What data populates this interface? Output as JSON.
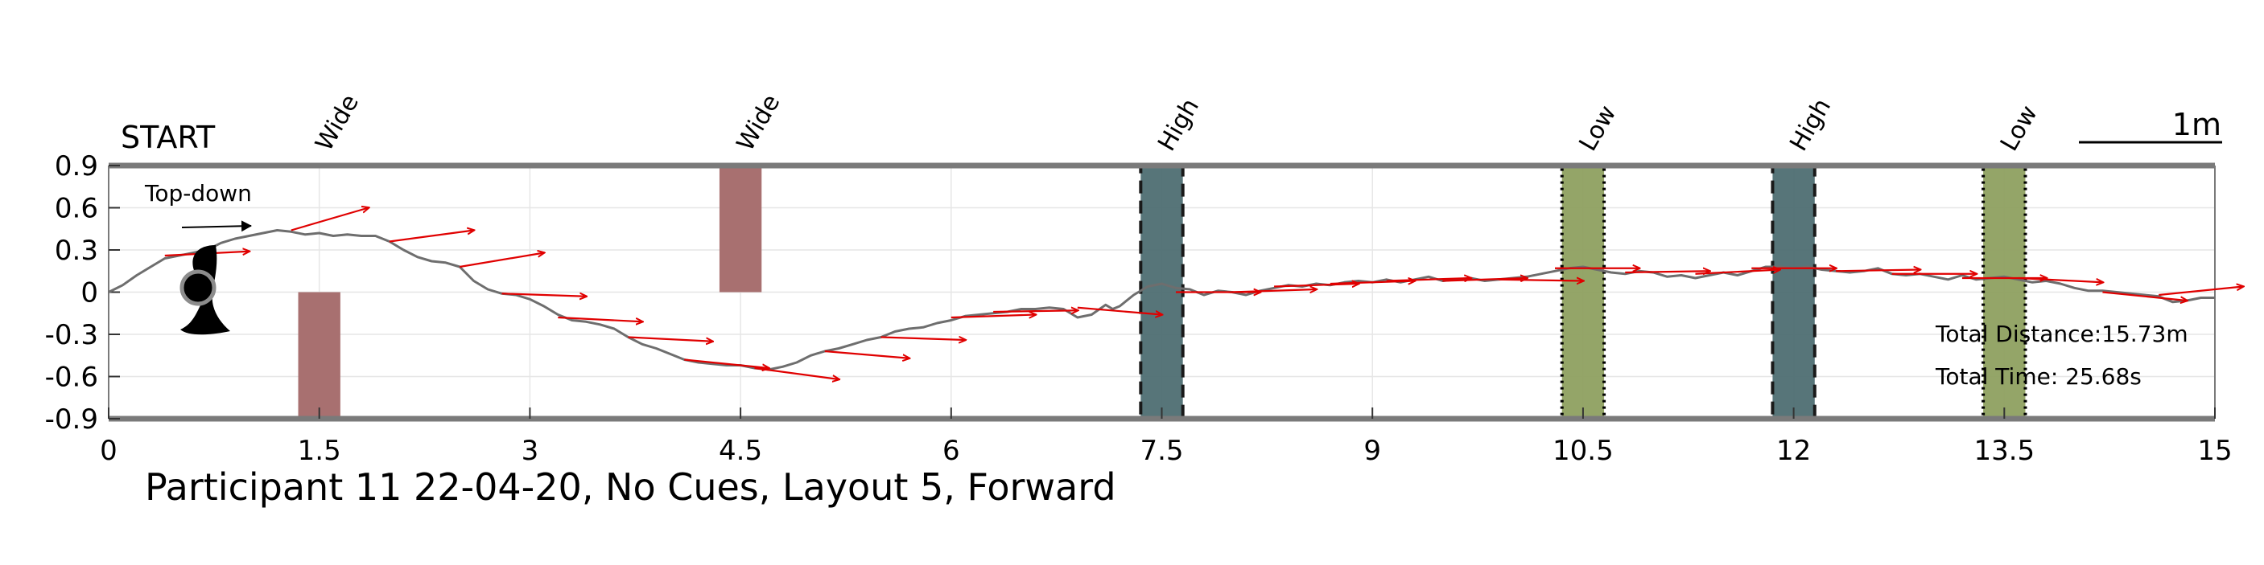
{
  "chart_data": {
    "type": "line",
    "title": "Participant 11 22-04-20, No Cues, Layout 5, Forward",
    "start_label": "START",
    "scale_label": "1m",
    "inset_label": "Top-down",
    "xlim": [
      0,
      15
    ],
    "ylim": [
      -0.9,
      0.9
    ],
    "x_ticks": [
      "0",
      "1.5",
      "3",
      "4.5",
      "6",
      "7.5",
      "9",
      "10.5",
      "12",
      "13.5",
      "15"
    ],
    "x_tick_values": [
      0,
      1.5,
      3,
      4.5,
      6,
      7.5,
      9,
      10.5,
      12,
      13.5,
      15
    ],
    "y_ticks": [
      "0.9",
      "0.6",
      "0.3",
      "0",
      "-0.3",
      "-0.6",
      "-0.9"
    ],
    "y_tick_values": [
      0.9,
      0.6,
      0.3,
      0,
      -0.3,
      -0.6,
      -0.9
    ],
    "grid": true,
    "annotations": {
      "total_distance": "Total Distance:15.73m",
      "total_time": "Total Time: 25.68s"
    },
    "obstacles": [
      {
        "label": "Wide",
        "type": "wide",
        "x0": 1.35,
        "x1": 1.65,
        "y0": -0.9,
        "y1": 0,
        "color": "#a87070"
      },
      {
        "label": "Wide",
        "type": "wide",
        "x0": 4.35,
        "x1": 4.65,
        "y0": 0,
        "y1": 0.9,
        "color": "#a87070"
      },
      {
        "label": "High",
        "type": "high",
        "x0": 7.35,
        "x1": 7.65,
        "y0": -0.9,
        "y1": 0.9,
        "color": "#4e6e72"
      },
      {
        "label": "Low",
        "type": "low",
        "x0": 10.35,
        "x1": 10.65,
        "y0": -0.9,
        "y1": 0.9,
        "color": "#8ea060"
      },
      {
        "label": "High",
        "type": "high",
        "x0": 11.85,
        "x1": 12.15,
        "y0": -0.9,
        "y1": 0.9,
        "color": "#4e6e72"
      },
      {
        "label": "Low",
        "type": "low",
        "x0": 13.35,
        "x1": 13.65,
        "y0": -0.9,
        "y1": 0.9,
        "color": "#8ea060"
      }
    ],
    "path": [
      [
        0.0,
        0.0
      ],
      [
        0.1,
        0.05
      ],
      [
        0.2,
        0.12
      ],
      [
        0.3,
        0.18
      ],
      [
        0.4,
        0.24
      ],
      [
        0.55,
        0.27
      ],
      [
        0.7,
        0.3
      ],
      [
        0.8,
        0.35
      ],
      [
        0.9,
        0.38
      ],
      [
        1.0,
        0.4
      ],
      [
        1.1,
        0.42
      ],
      [
        1.2,
        0.44
      ],
      [
        1.3,
        0.43
      ],
      [
        1.4,
        0.41
      ],
      [
        1.5,
        0.42
      ],
      [
        1.6,
        0.4
      ],
      [
        1.7,
        0.41
      ],
      [
        1.8,
        0.4
      ],
      [
        1.9,
        0.4
      ],
      [
        2.0,
        0.36
      ],
      [
        2.1,
        0.3
      ],
      [
        2.2,
        0.25
      ],
      [
        2.3,
        0.22
      ],
      [
        2.4,
        0.21
      ],
      [
        2.5,
        0.18
      ],
      [
        2.6,
        0.08
      ],
      [
        2.7,
        0.02
      ],
      [
        2.8,
        -0.01
      ],
      [
        2.9,
        -0.02
      ],
      [
        3.0,
        -0.05
      ],
      [
        3.1,
        -0.1
      ],
      [
        3.2,
        -0.16
      ],
      [
        3.3,
        -0.2
      ],
      [
        3.4,
        -0.21
      ],
      [
        3.5,
        -0.23
      ],
      [
        3.6,
        -0.26
      ],
      [
        3.7,
        -0.32
      ],
      [
        3.8,
        -0.37
      ],
      [
        3.9,
        -0.4
      ],
      [
        4.0,
        -0.44
      ],
      [
        4.1,
        -0.48
      ],
      [
        4.2,
        -0.5
      ],
      [
        4.3,
        -0.51
      ],
      [
        4.4,
        -0.52
      ],
      [
        4.5,
        -0.52
      ],
      [
        4.6,
        -0.54
      ],
      [
        4.7,
        -0.55
      ],
      [
        4.8,
        -0.53
      ],
      [
        4.9,
        -0.5
      ],
      [
        5.0,
        -0.45
      ],
      [
        5.1,
        -0.42
      ],
      [
        5.2,
        -0.4
      ],
      [
        5.3,
        -0.37
      ],
      [
        5.4,
        -0.34
      ],
      [
        5.5,
        -0.32
      ],
      [
        5.6,
        -0.28
      ],
      [
        5.7,
        -0.26
      ],
      [
        5.8,
        -0.25
      ],
      [
        5.9,
        -0.22
      ],
      [
        6.0,
        -0.2
      ],
      [
        6.1,
        -0.17
      ],
      [
        6.2,
        -0.16
      ],
      [
        6.3,
        -0.15
      ],
      [
        6.4,
        -0.14
      ],
      [
        6.5,
        -0.12
      ],
      [
        6.6,
        -0.12
      ],
      [
        6.7,
        -0.11
      ],
      [
        6.8,
        -0.12
      ],
      [
        6.9,
        -0.18
      ],
      [
        7.0,
        -0.16
      ],
      [
        7.1,
        -0.09
      ],
      [
        7.15,
        -0.12
      ],
      [
        7.2,
        -0.1
      ],
      [
        7.3,
        -0.02
      ],
      [
        7.4,
        0.04
      ],
      [
        7.5,
        0.06
      ],
      [
        7.6,
        0.03
      ],
      [
        7.7,
        0.02
      ],
      [
        7.8,
        -0.02
      ],
      [
        7.9,
        0.01
      ],
      [
        8.0,
        0.0
      ],
      [
        8.1,
        -0.02
      ],
      [
        8.2,
        0.01
      ],
      [
        8.3,
        0.03
      ],
      [
        8.4,
        0.05
      ],
      [
        8.5,
        0.04
      ],
      [
        8.6,
        0.06
      ],
      [
        8.7,
        0.05
      ],
      [
        8.8,
        0.07
      ],
      [
        8.9,
        0.08
      ],
      [
        9.0,
        0.07
      ],
      [
        9.1,
        0.09
      ],
      [
        9.2,
        0.07
      ],
      [
        9.3,
        0.09
      ],
      [
        9.4,
        0.11
      ],
      [
        9.5,
        0.08
      ],
      [
        9.6,
        0.09
      ],
      [
        9.7,
        0.1
      ],
      [
        9.8,
        0.08
      ],
      [
        9.9,
        0.09
      ],
      [
        10.0,
        0.1
      ],
      [
        10.1,
        0.11
      ],
      [
        10.2,
        0.13
      ],
      [
        10.3,
        0.15
      ],
      [
        10.4,
        0.17
      ],
      [
        10.5,
        0.18
      ],
      [
        10.6,
        0.16
      ],
      [
        10.7,
        0.14
      ],
      [
        10.8,
        0.13
      ],
      [
        10.9,
        0.15
      ],
      [
        11.0,
        0.14
      ],
      [
        11.1,
        0.11
      ],
      [
        11.2,
        0.12
      ],
      [
        11.3,
        0.1
      ],
      [
        11.4,
        0.12
      ],
      [
        11.5,
        0.14
      ],
      [
        11.6,
        0.12
      ],
      [
        11.7,
        0.15
      ],
      [
        11.8,
        0.18
      ],
      [
        11.9,
        0.18
      ],
      [
        12.0,
        0.17
      ],
      [
        12.1,
        0.18
      ],
      [
        12.2,
        0.16
      ],
      [
        12.3,
        0.15
      ],
      [
        12.4,
        0.14
      ],
      [
        12.5,
        0.15
      ],
      [
        12.6,
        0.17
      ],
      [
        12.7,
        0.13
      ],
      [
        12.8,
        0.12
      ],
      [
        12.9,
        0.13
      ],
      [
        13.0,
        0.11
      ],
      [
        13.1,
        0.09
      ],
      [
        13.2,
        0.12
      ],
      [
        13.3,
        0.09
      ],
      [
        13.4,
        0.1
      ],
      [
        13.5,
        0.11
      ],
      [
        13.6,
        0.09
      ],
      [
        13.7,
        0.07
      ],
      [
        13.8,
        0.08
      ],
      [
        13.9,
        0.06
      ],
      [
        14.0,
        0.03
      ],
      [
        14.1,
        0.01
      ],
      [
        14.2,
        0.01
      ],
      [
        14.3,
        0.0
      ],
      [
        14.4,
        -0.01
      ],
      [
        14.5,
        -0.02
      ],
      [
        14.6,
        -0.03
      ],
      [
        14.7,
        -0.07
      ],
      [
        14.8,
        -0.06
      ],
      [
        14.9,
        -0.04
      ],
      [
        15.0,
        -0.04
      ]
    ],
    "heading_arrows": [
      [
        0.4,
        0.26,
        0.6,
        0.03
      ],
      [
        1.3,
        0.44,
        0.55,
        0.16
      ],
      [
        2.0,
        0.36,
        0.6,
        0.08
      ],
      [
        2.5,
        0.18,
        0.6,
        0.1
      ],
      [
        2.8,
        -0.01,
        0.6,
        -0.02
      ],
      [
        3.2,
        -0.18,
        0.6,
        -0.03
      ],
      [
        3.7,
        -0.32,
        0.6,
        -0.03
      ],
      [
        4.1,
        -0.48,
        0.6,
        -0.06
      ],
      [
        4.6,
        -0.54,
        0.6,
        -0.08
      ],
      [
        5.1,
        -0.42,
        0.6,
        -0.05
      ],
      [
        5.5,
        -0.32,
        0.6,
        -0.02
      ],
      [
        6.0,
        -0.18,
        0.6,
        0.02
      ],
      [
        6.3,
        -0.14,
        0.6,
        0.01
      ],
      [
        6.9,
        -0.11,
        0.6,
        -0.05
      ],
      [
        7.6,
        0.0,
        0.6,
        0.0
      ],
      [
        8.0,
        0.0,
        0.6,
        0.02
      ],
      [
        8.3,
        0.04,
        0.6,
        0.02
      ],
      [
        8.7,
        0.06,
        0.6,
        0.02
      ],
      [
        9.1,
        0.08,
        0.6,
        0.02
      ],
      [
        9.5,
        0.08,
        0.6,
        0.02
      ],
      [
        9.9,
        0.09,
        0.6,
        -0.01
      ],
      [
        10.3,
        0.17,
        0.6,
        0.0
      ],
      [
        10.8,
        0.14,
        0.6,
        0.01
      ],
      [
        11.3,
        0.13,
        0.6,
        0.03
      ],
      [
        11.7,
        0.17,
        0.6,
        0.0
      ],
      [
        12.3,
        0.15,
        0.6,
        0.01
      ],
      [
        12.7,
        0.13,
        0.6,
        0.0
      ],
      [
        13.2,
        0.1,
        0.6,
        0.0
      ],
      [
        13.6,
        0.1,
        0.6,
        -0.03
      ],
      [
        14.2,
        0.0,
        0.6,
        -0.06
      ],
      [
        14.6,
        -0.02,
        0.6,
        0.06
      ]
    ],
    "colors": {
      "path": "#6e6e6e",
      "heading_arrow": "#e00000",
      "axis_band": "#7a7a7a",
      "grid": "#e6e6e6",
      "text": "#000000"
    }
  }
}
